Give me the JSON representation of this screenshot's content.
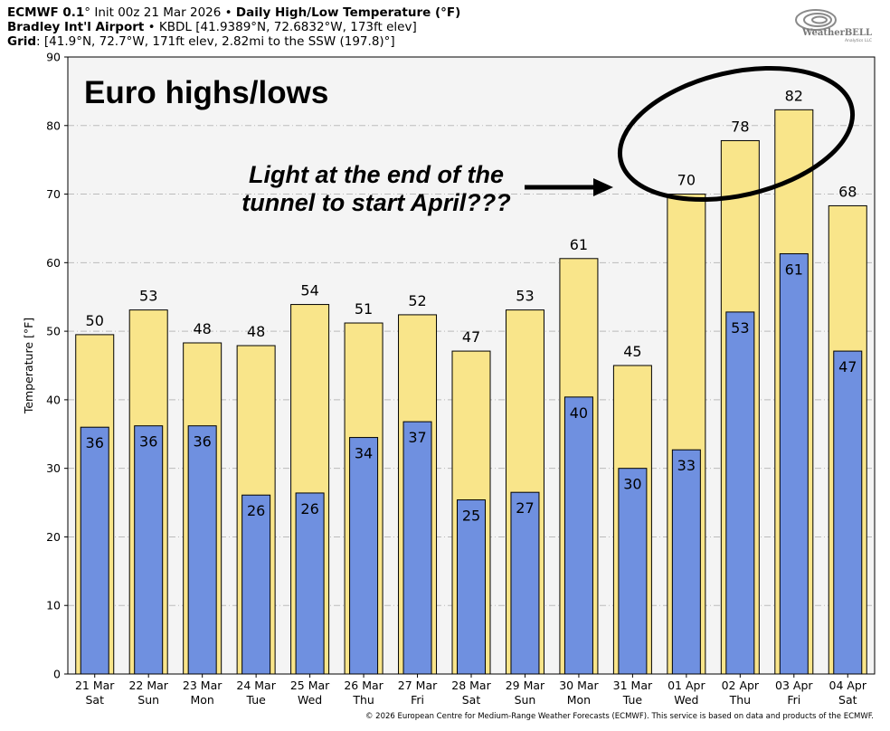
{
  "header": {
    "line1_model": "ECMWF 0.1",
    "line1_deg": "°",
    "line1_init": " Init 00z 21 Mar 2026 • ",
    "line1_product": "Daily High/Low Temperature (°F)",
    "line2_station": "Bradley Int'l Airport",
    "line2_info": " • KBDL [41.9389°N, 72.6832°W, 173ft elev]",
    "line3_label": "Grid",
    "line3_info": ": [41.9°N, 72.7°W, 171ft elev, 2.82mi to the SSW (197.8)°]"
  },
  "logo": {
    "text": "WeatherBELL",
    "sub": "Analytics LLC"
  },
  "footer": "© 2026 European Centre for Medium-Range Weather Forecasts (ECMWF). This service is based on data and products of the ECMWF.",
  "colors": {
    "high": "#f9e58a",
    "low": "#6f90e0",
    "plot_bg": "#f4f4f4",
    "grid": "#bbbbbb"
  },
  "chart_data": {
    "type": "bar",
    "title": "Daily High/Low Temperature (°F)",
    "ylabel": "Temperature [°F]",
    "xlabel": "",
    "ylim": [
      0,
      90
    ],
    "yticks": [
      0,
      10,
      20,
      30,
      40,
      50,
      60,
      70,
      80,
      90
    ],
    "grid": true,
    "categories": [
      {
        "date": "21 Mar",
        "day": "Sat"
      },
      {
        "date": "22 Mar",
        "day": "Sun"
      },
      {
        "date": "23 Mar",
        "day": "Mon"
      },
      {
        "date": "24 Mar",
        "day": "Tue"
      },
      {
        "date": "25 Mar",
        "day": "Wed"
      },
      {
        "date": "26 Mar",
        "day": "Thu"
      },
      {
        "date": "27 Mar",
        "day": "Fri"
      },
      {
        "date": "28 Mar",
        "day": "Sat"
      },
      {
        "date": "29 Mar",
        "day": "Sun"
      },
      {
        "date": "30 Mar",
        "day": "Mon"
      },
      {
        "date": "31 Mar",
        "day": "Tue"
      },
      {
        "date": "01 Apr",
        "day": "Wed"
      },
      {
        "date": "02 Apr",
        "day": "Thu"
      },
      {
        "date": "03 Apr",
        "day": "Fri"
      },
      {
        "date": "04 Apr",
        "day": "Sat"
      }
    ],
    "series": [
      {
        "key": "high",
        "values": [
          49.5,
          53.1,
          48.3,
          47.9,
          53.9,
          51.2,
          52.4,
          47.1,
          53.1,
          60.6,
          45.0,
          70.0,
          77.8,
          82.3,
          68.3
        ],
        "labels": [
          "50",
          "53",
          "48",
          "48",
          "54",
          "51",
          "52",
          "47",
          "53",
          "61",
          "45",
          "70",
          "78",
          "82",
          "68"
        ]
      },
      {
        "key": "low",
        "values": [
          36.0,
          36.2,
          36.2,
          26.1,
          26.4,
          34.5,
          36.8,
          25.4,
          26.5,
          40.4,
          30.0,
          32.7,
          52.8,
          61.3,
          47.1
        ],
        "labels": [
          "36",
          "36",
          "36",
          "26",
          "26",
          "34",
          "37",
          "25",
          "27",
          "40",
          "30",
          "33",
          "53",
          "61",
          "47"
        ]
      }
    ],
    "annotations": {
      "title": "Euro highs/lows",
      "note_line1": "Light at the end of the",
      "note_line2": "tunnel to start April???"
    }
  }
}
